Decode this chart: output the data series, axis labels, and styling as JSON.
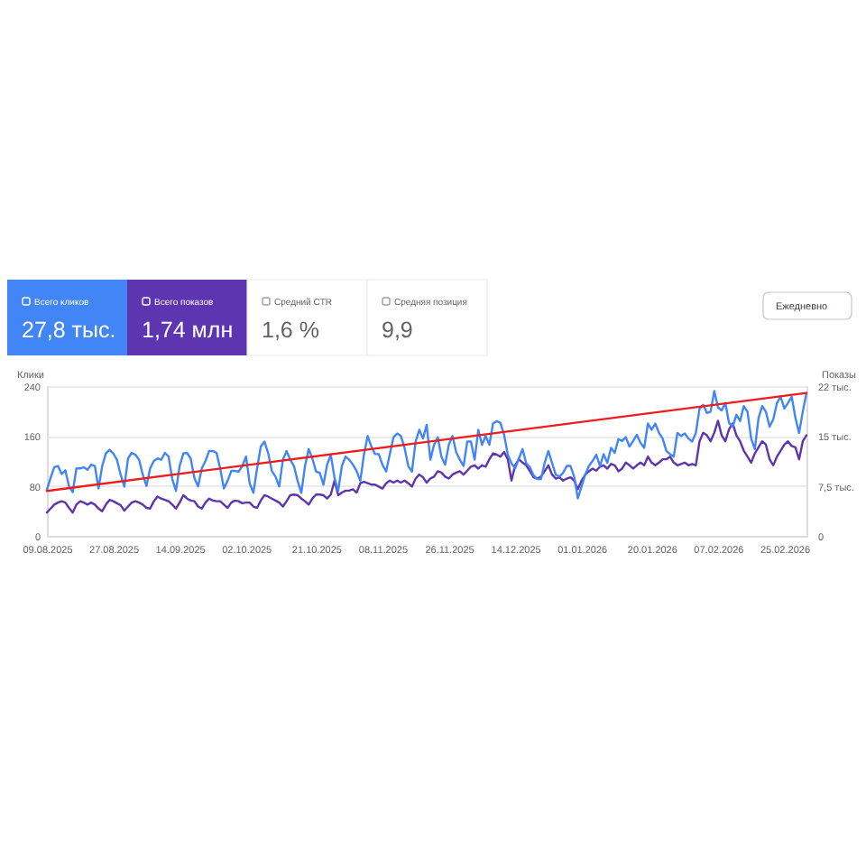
{
  "chart_data": {
    "type": "line",
    "ylabel": "Клики",
    "y2label": "Показы",
    "annotations": [
      "27,8 тыс.",
      "1,74 млн",
      "Средний CTR",
      "1,6 %",
      "Средняя позиция",
      "9,9",
      "Ежедневно"
    ],
    "legend": "top left",
    "xlim": [
      "2025-08-09",
      "2026-03-03"
    ],
    "xticks": [
      {
        "value": "2025-08-09",
        "label": "09.08.2025"
      },
      {
        "value": "2025-08-27",
        "label": "27.08.2025"
      },
      {
        "value": "2025-09-14",
        "label": "14.09.2025"
      },
      {
        "value": "2025-10-02",
        "label": "02.10.2025"
      },
      {
        "value": "2025-10-21",
        "label": "21.10.2025"
      },
      {
        "value": "2025-11-08",
        "label": "08.11.2025"
      },
      {
        "value": "2025-11-26",
        "label": "26.11.2025"
      },
      {
        "value": "2025-12-14",
        "label": "14.12.2025"
      },
      {
        "value": "2026-01-01",
        "label": "01.01.2026"
      },
      {
        "value": "2026-01-20",
        "label": "20.01.2026"
      },
      {
        "value": "2026-02-07",
        "label": "07.02.2026"
      },
      {
        "value": "2026-02-25",
        "label": "25.02.2026"
      }
    ],
    "ylim": [
      0,
      240
    ],
    "yticks": [
      0,
      80,
      160,
      240
    ],
    "y2lim": [
      0,
      22.5
    ],
    "y2ticks": [
      0,
      {
        "value": 7.5,
        "label": "7,5 тыс."
      },
      {
        "value": 15,
        "label": "15 тыс."
      },
      {
        "value": 22.5,
        "label": "22 тыс."
      }
    ],
    "grid": "y",
    "x": [
      "2025-08-09",
      "2025-08-10",
      "2025-08-11",
      "2025-08-12",
      "2025-08-13",
      "2025-08-14",
      "2025-08-15",
      "2025-08-16",
      "2025-08-17",
      "2025-08-18",
      "2025-08-19",
      "2025-08-20",
      "2025-08-21",
      "2025-08-22",
      "2025-08-23",
      "2025-08-24",
      "2025-08-25",
      "2025-08-26",
      "2025-08-27",
      "2025-08-28",
      "2025-08-29",
      "2025-08-30",
      "2025-08-31",
      "2025-09-01",
      "2025-09-02",
      "2025-09-03",
      "2025-09-04",
      "2025-09-05",
      "2025-09-06",
      "2025-09-07",
      "2025-09-08",
      "2025-09-09",
      "2025-09-10",
      "2025-09-11",
      "2025-09-12",
      "2025-09-13",
      "2025-09-14",
      "2025-09-15",
      "2025-09-16",
      "2025-09-17",
      "2025-09-18",
      "2025-09-19",
      "2025-09-20",
      "2025-09-21",
      "2025-09-22",
      "2025-09-23",
      "2025-09-24",
      "2025-09-25",
      "2025-09-26",
      "2025-09-27",
      "2025-09-28",
      "2025-09-29",
      "2025-09-30",
      "2025-10-01",
      "2025-10-02",
      "2025-10-03",
      "2025-10-04",
      "2025-10-05",
      "2025-10-06",
      "2025-10-07",
      "2025-10-08",
      "2025-10-09",
      "2025-10-10",
      "2025-10-11",
      "2025-10-12",
      "2025-10-13",
      "2025-10-14",
      "2025-10-15",
      "2025-10-16",
      "2025-10-17",
      "2025-10-18",
      "2025-10-19",
      "2025-10-20",
      "2025-10-21",
      "2025-10-22",
      "2025-10-23",
      "2025-10-24",
      "2025-10-25",
      "2025-10-26",
      "2025-10-27",
      "2025-10-28",
      "2025-10-29",
      "2025-10-30",
      "2025-10-31",
      "2025-11-01",
      "2025-11-02",
      "2025-11-03",
      "2025-11-04",
      "2025-11-05",
      "2025-11-06",
      "2025-11-07",
      "2025-11-08",
      "2025-11-09",
      "2025-11-10",
      "2025-11-11",
      "2025-11-12",
      "2025-11-13",
      "2025-11-14",
      "2025-11-15",
      "2025-11-16",
      "2025-11-17",
      "2025-11-18",
      "2025-11-19",
      "2025-11-20",
      "2025-11-21",
      "2025-11-22",
      "2025-11-23",
      "2025-11-24",
      "2025-11-25",
      "2025-11-26",
      "2025-11-27",
      "2025-11-28",
      "2025-11-29",
      "2025-11-30",
      "2025-12-01",
      "2025-12-02",
      "2025-12-03",
      "2025-12-04",
      "2025-12-05",
      "2025-12-06",
      "2025-12-07",
      "2025-12-08",
      "2025-12-09",
      "2025-12-10",
      "2025-12-11",
      "2025-12-12",
      "2025-12-13",
      "2025-12-14",
      "2025-12-15",
      "2025-12-16",
      "2025-12-17",
      "2025-12-18",
      "2025-12-19",
      "2025-12-20",
      "2025-12-21",
      "2025-12-22",
      "2025-12-23",
      "2025-12-24",
      "2025-12-25",
      "2025-12-26",
      "2025-12-27",
      "2025-12-28",
      "2025-12-29",
      "2025-12-30",
      "2025-12-31",
      "2026-01-01",
      "2026-01-02",
      "2026-01-03",
      "2026-01-04",
      "2026-01-05",
      "2026-01-06",
      "2026-01-07",
      "2026-01-08",
      "2026-01-09",
      "2026-01-10",
      "2026-01-11",
      "2026-01-12",
      "2026-01-13",
      "2026-01-14",
      "2026-01-15",
      "2026-01-16",
      "2026-01-17",
      "2026-01-18",
      "2026-01-19",
      "2026-01-20",
      "2026-01-21",
      "2026-01-22",
      "2026-01-23",
      "2026-01-24",
      "2026-01-25",
      "2026-01-26",
      "2026-01-27",
      "2026-01-28",
      "2026-01-29",
      "2026-01-30",
      "2026-01-31",
      "2026-02-01",
      "2026-02-02",
      "2026-02-03",
      "2026-02-04",
      "2026-02-05",
      "2026-02-06",
      "2026-02-07",
      "2026-02-08",
      "2026-02-09",
      "2026-02-10",
      "2026-02-11",
      "2026-02-12",
      "2026-02-13",
      "2026-02-14",
      "2026-02-15",
      "2026-02-16",
      "2026-02-17",
      "2026-02-18",
      "2026-02-19",
      "2026-02-20",
      "2026-02-21",
      "2026-02-22",
      "2026-02-23",
      "2026-02-24",
      "2026-02-25",
      "2026-02-26",
      "2026-02-27",
      "2026-02-28",
      "2026-03-01",
      "2026-03-02",
      "2026-03-03"
    ],
    "series": [
      {
        "name": "Всего кликов",
        "color": "#4285f4",
        "values": [
          74,
          93,
          110,
          112,
          99,
          105,
          79,
          70,
          108,
          108,
          110,
          106,
          114,
          112,
          76,
          112,
          132,
          138,
          132,
          122,
          98,
          79,
          124,
          133,
          130,
          122,
          98,
          80,
          108,
          120,
          124,
          122,
          133,
          127,
          91,
          72,
          112,
          132,
          133,
          124,
          93,
          79,
          108,
          120,
          136,
          136,
          133,
          108,
          76,
          88,
          104,
          104,
          103,
          112,
          127,
          84,
          69,
          108,
          143,
          151,
          133,
          104,
          95,
          79,
          122,
          136,
          122,
          112,
          88,
          69,
          112,
          139,
          124,
          103,
          101,
          82,
          114,
          130,
          93,
          72,
          112,
          127,
          122,
          114,
          104,
          88,
          131,
          160,
          143,
          131,
          131,
          114,
          103,
          131,
          158,
          164,
          160,
          141,
          112,
          103,
          151,
          170,
          156,
          178,
          122,
          146,
          158,
          127,
          114,
          146,
          160,
          134,
          122,
          112,
          151,
          151,
          122,
          170,
          146,
          160,
          146,
          180,
          184,
          181,
          162,
          130,
          116,
          108,
          124,
          139,
          116,
          110,
          97,
          91,
          91,
          117,
          136,
          117,
          98,
          95,
          101,
          112,
          112,
          95,
          60,
          79,
          98,
          112,
          120,
          130,
          112,
          131,
          117,
          141,
          133,
          155,
          152,
          158,
          143,
          152,
          162,
          149,
          141,
          180,
          170,
          180,
          165,
          156,
          136,
          131,
          127,
          165,
          160,
          164,
          156,
          151,
          165,
          204,
          210,
          197,
          199,
          232,
          206,
          201,
          213,
          181,
          175,
          194,
          184,
          208,
          199,
          156,
          139,
          189,
          208,
          199,
          175,
          187,
          213,
          223,
          204,
          213,
          223,
          189,
          165,
          199,
          229
        ]
      },
      {
        "name": "Всего показов",
        "color": "#5e35b1",
        "axis": "y2",
        "values": [
          3.5,
          4.1,
          4.7,
          5.0,
          5.2,
          5.0,
          4.2,
          3.5,
          4.7,
          5.2,
          5.0,
          4.7,
          5.0,
          4.7,
          4.1,
          3.7,
          4.7,
          5.4,
          5.2,
          4.9,
          4.6,
          3.8,
          4.4,
          5.0,
          5.2,
          5.0,
          4.7,
          4.2,
          4.1,
          5.2,
          5.9,
          5.6,
          5.4,
          5.2,
          4.7,
          4.1,
          5.0,
          6.1,
          5.6,
          5.3,
          5.2,
          4.4,
          4.1,
          5.0,
          5.6,
          5.3,
          5.2,
          5.2,
          4.7,
          4.2,
          5.0,
          5.3,
          5.2,
          4.9,
          5.0,
          5.0,
          4.4,
          4.2,
          5.3,
          6.1,
          5.9,
          5.6,
          5.3,
          5.0,
          4.4,
          5.2,
          6.1,
          6.2,
          6.1,
          5.6,
          5.2,
          4.7,
          5.6,
          6.2,
          6.2,
          6.1,
          5.6,
          6.2,
          8.3,
          6.1,
          6.5,
          6.8,
          6.8,
          7.0,
          6.5,
          7.9,
          8.1,
          7.9,
          7.7,
          7.7,
          7.4,
          7.1,
          7.9,
          8.3,
          8.0,
          8.3,
          8.0,
          8.3,
          7.9,
          7.4,
          8.6,
          9.2,
          8.8,
          8.0,
          8.6,
          8.9,
          9.7,
          9.5,
          8.9,
          8.6,
          9.2,
          9.5,
          9.7,
          9.2,
          9.8,
          10.4,
          10.6,
          10.1,
          10.6,
          10.4,
          11.5,
          12.4,
          12.2,
          11.9,
          12.6,
          11.5,
          8.3,
          10.6,
          11.5,
          11.0,
          10.6,
          9.7,
          8.8,
          8.6,
          8.9,
          9.7,
          10.6,
          9.2,
          8.6,
          8.8,
          8.3,
          8.6,
          8.8,
          8.3,
          7.0,
          8.3,
          9.2,
          9.7,
          10.1,
          9.8,
          10.4,
          10.6,
          10.1,
          10.8,
          10.6,
          9.7,
          10.1,
          11.0,
          10.6,
          10.1,
          10.6,
          11.0,
          10.6,
          11.9,
          11.0,
          10.6,
          11.0,
          11.5,
          11.5,
          11.9,
          11.0,
          10.6,
          10.8,
          11.0,
          10.6,
          10.8,
          10.6,
          14.2,
          15.5,
          15.1,
          14.2,
          15.5,
          17.3,
          15.1,
          14.2,
          16.0,
          16.9,
          15.1,
          14.2,
          12.8,
          11.9,
          11.0,
          12.4,
          13.3,
          14.2,
          13.7,
          11.5,
          10.6,
          11.9,
          12.8,
          13.7,
          14.2,
          13.5,
          13.3,
          11.5,
          14.2,
          15.1
        ]
      },
      {
        "type": "line",
        "color": "#ee1c1c",
        "x": [
          "2025-08-09",
          "2026-03-03"
        ],
        "values": [
          72,
          229
        ]
      }
    ]
  }
}
